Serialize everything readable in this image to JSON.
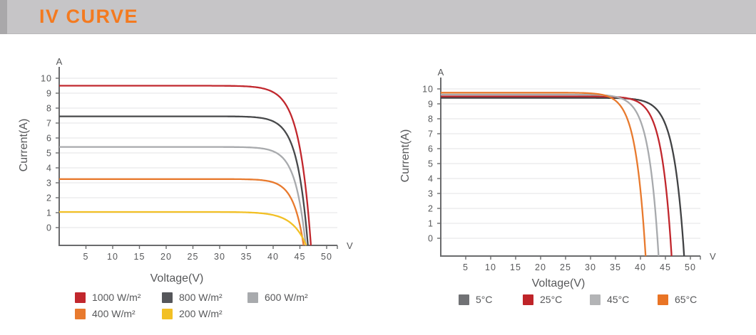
{
  "header": {
    "title": "IV CURVE"
  },
  "colors": {
    "accent": "#f47a1f",
    "bar": "#c6c5c7",
    "bar_edge": "#a9a8aa",
    "axis": "#6a6b6d",
    "grid": "#e3e3e4",
    "text": "#57585a"
  },
  "chart_data": [
    {
      "type": "line",
      "id": "irradiance-iv",
      "title": "IV curve vs irradiance",
      "xlabel": "Voltage(V)",
      "ylabel": "Current(A)",
      "x_unit": "V",
      "y_unit": "A",
      "xlim": [
        0,
        52
      ],
      "ylim": [
        0,
        10
      ],
      "xticks": [
        5,
        10,
        15,
        20,
        25,
        30,
        35,
        40,
        45,
        50
      ],
      "yticks": [
        0,
        1,
        2,
        3,
        4,
        5,
        6,
        7,
        8,
        9,
        10
      ],
      "grid": true,
      "legend_position": "bottom",
      "series": [
        {
          "name": "1000 W/m²",
          "color": "#c1272d",
          "swatch": "#c1272d",
          "isc_A": 9.5,
          "voc_V": 46.8,
          "knee_V": 2.2
        },
        {
          "name": "800 W/m²",
          "color": "#48494b",
          "swatch": "#55565a",
          "isc_A": 7.45,
          "voc_V": 46.2,
          "knee_V": 2.0
        },
        {
          "name": "600 W/m²",
          "color": "#a8aaad",
          "swatch": "#a8aaad",
          "isc_A": 5.4,
          "voc_V": 45.7,
          "knee_V": 1.95
        },
        {
          "name": "400 W/m²",
          "color": "#e87a2e",
          "swatch": "#e87a2e",
          "isc_A": 3.25,
          "voc_V": 45.1,
          "knee_V": 1.9
        },
        {
          "name": "200 W/m²",
          "color": "#f2c025",
          "swatch": "#f2c025",
          "isc_A": 1.05,
          "voc_V": 44.2,
          "knee_V": 2.6
        }
      ]
    },
    {
      "type": "line",
      "id": "temperature-iv",
      "title": "IV curve vs temperature",
      "xlabel": "Voltage(V)",
      "ylabel": "Current(A)",
      "x_unit": "V",
      "y_unit": "A",
      "xlim": [
        0,
        52
      ],
      "ylim": [
        0,
        10
      ],
      "xticks": [
        5,
        10,
        15,
        20,
        25,
        30,
        35,
        40,
        45,
        50
      ],
      "yticks": [
        0,
        1,
        2,
        3,
        4,
        5,
        6,
        7,
        8,
        9,
        10
      ],
      "grid": true,
      "legend_position": "bottom",
      "series": [
        {
          "name": "5°C",
          "color": "#414244",
          "swatch": "#717275",
          "isc_A": 9.4,
          "voc_V": 48.5,
          "knee_V": 2.1
        },
        {
          "name": "25°C",
          "color": "#c1272d",
          "swatch": "#bf2429",
          "isc_A": 9.5,
          "voc_V": 46.0,
          "knee_V": 2.0
        },
        {
          "name": "45°C",
          "color": "#a8aaad",
          "swatch": "#b3b4b6",
          "isc_A": 9.62,
          "voc_V": 43.4,
          "knee_V": 2.0
        },
        {
          "name": "65°C",
          "color": "#e87a2e",
          "swatch": "#e97425",
          "isc_A": 9.75,
          "voc_V": 40.8,
          "knee_V": 2.0
        }
      ]
    }
  ]
}
